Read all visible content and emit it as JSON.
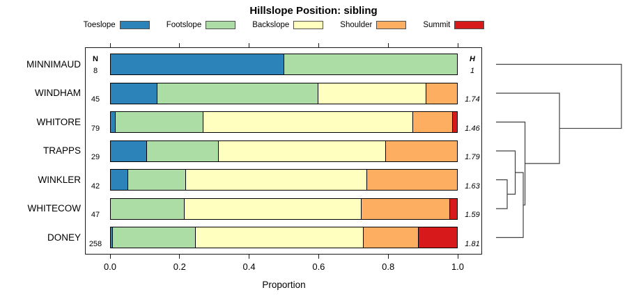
{
  "title": "Hillslope Position: sibling",
  "legend": [
    {
      "label": "Toeslope",
      "color": "#2B83BA"
    },
    {
      "label": "Footslope",
      "color": "#ABDDA4"
    },
    {
      "label": "Backslope",
      "color": "#FFFFBF"
    },
    {
      "label": "Shoulder",
      "color": "#FDAE61"
    },
    {
      "label": "Summit",
      "color": "#D7191C"
    }
  ],
  "columns": {
    "n_header": "N",
    "h_header": "H"
  },
  "axis": {
    "label": "Proportion",
    "ticks": [
      "0.0",
      "0.2",
      "0.4",
      "0.6",
      "0.8",
      "1.0"
    ],
    "tick_values": [
      0,
      0.2,
      0.4,
      0.6,
      0.8,
      1.0
    ]
  },
  "chart_data": {
    "type": "bar",
    "stacked": true,
    "orientation": "horizontal",
    "title": "Hillslope Position: sibling",
    "xlabel": "Proportion",
    "xlim": [
      0,
      1
    ],
    "grid": false,
    "legend_position": "top",
    "categories": [
      "MINNIMAUD",
      "WINDHAM",
      "WHITORE",
      "TRAPPS",
      "WINKLER",
      "WHITECOW",
      "DONEY"
    ],
    "n_values": [
      "8",
      "45",
      "79",
      "29",
      "42",
      "47",
      "258"
    ],
    "h_values": [
      "1",
      "1.74",
      "1.46",
      "1.79",
      "1.63",
      "1.59",
      "1.81"
    ],
    "series": [
      {
        "name": "Toeslope",
        "color": "#2B83BA",
        "values": [
          0.5,
          0.133,
          0.013,
          0.103,
          0.048,
          0,
          0.004
        ]
      },
      {
        "name": "Footslope",
        "color": "#ABDDA4",
        "values": [
          0.5,
          0.467,
          0.253,
          0.207,
          0.166,
          0.213,
          0.24
        ]
      },
      {
        "name": "Backslope",
        "color": "#FFFFBF",
        "values": [
          0,
          0.311,
          0.608,
          0.483,
          0.524,
          0.511,
          0.487
        ]
      },
      {
        "name": "Shoulder",
        "color": "#FDAE61",
        "values": [
          0,
          0.089,
          0.113,
          0.207,
          0.262,
          0.255,
          0.157
        ]
      },
      {
        "name": "Summit",
        "color": "#D7191C",
        "values": [
          0,
          0,
          0.013,
          0,
          0,
          0.021,
          0.112
        ]
      }
    ]
  },
  "dendrogram": {
    "leaves": [
      "MINNIMAUD",
      "WINDHAM",
      "WHITORE",
      "TRAPPS",
      "WINKLER",
      "WHITECOW",
      "DONEY"
    ],
    "merges": [
      {
        "a": "WINKLER",
        "b": "WHITECOW",
        "height": 0.089
      },
      {
        "a": "TRAPPS",
        "b": "M0",
        "height": 0.153
      },
      {
        "a": "M1",
        "b": "DONEY",
        "height": 0.217
      },
      {
        "a": "WHITORE",
        "b": "M2",
        "height": 0.231
      },
      {
        "a": "WINDHAM",
        "b": "M3",
        "height": 0.506
      },
      {
        "a": "MINNIMAUD",
        "b": "M4",
        "height": 1.0
      }
    ]
  }
}
